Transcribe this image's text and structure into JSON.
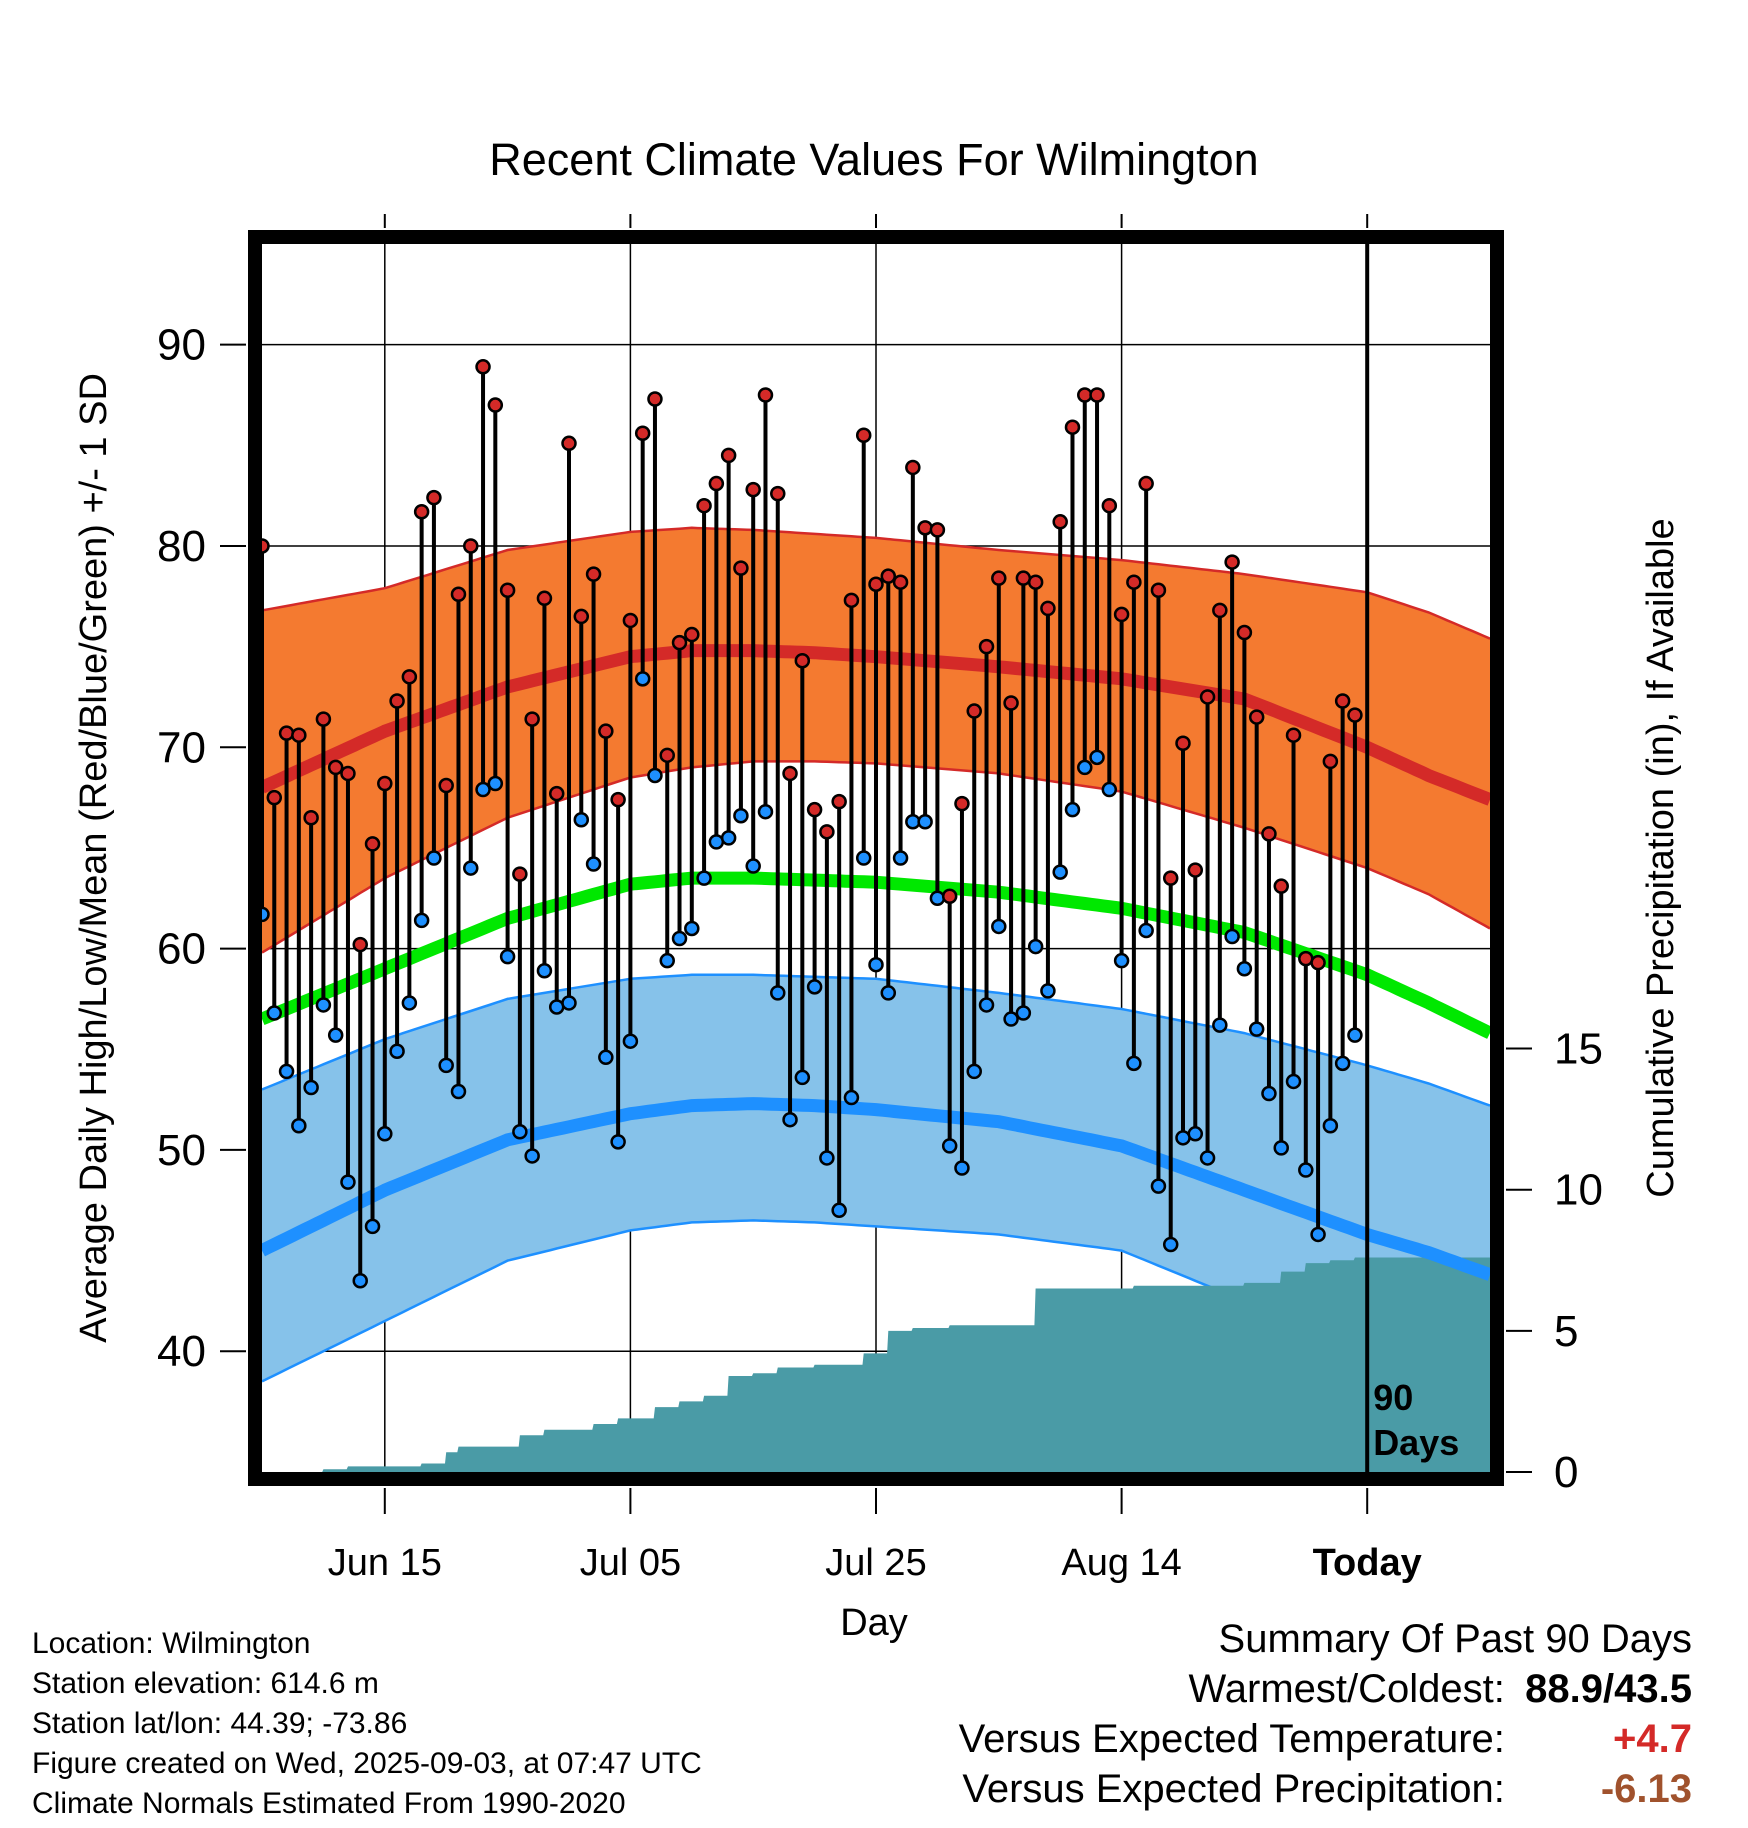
{
  "title": "Recent Climate Values For Wilmington",
  "chart_data": {
    "type": "line",
    "title": "Recent Climate Values For Wilmington",
    "xlabel": "Day",
    "ylabel": "Average Daily High/Low/Mean (Red/Blue/Green) +/- 1 SD",
    "y2label": "Cumulative Precipitation (in), If Available",
    "x_tick_labels": [
      "Jun 15",
      "Jul 05",
      "Jul 25",
      "Aug 14",
      "Today"
    ],
    "x_tick_days": [
      10,
      30,
      50,
      70,
      90
    ],
    "xlim": [
      0,
      100
    ],
    "ylim": [
      34,
      95
    ],
    "y_ticks": [
      40,
      50,
      60,
      70,
      80,
      90
    ],
    "y2lim": [
      0,
      43.5
    ],
    "y2_ticks": [
      0,
      5,
      10,
      15
    ],
    "grid": true,
    "today_marker_day": 90,
    "today_label": [
      "90",
      "Days"
    ],
    "colors": {
      "high_band": "#f47a30",
      "high_band_edge": "#d42a28",
      "high_mean": "#d42a28",
      "low_band": "#86c2ea",
      "low_band_edge": "#1e90ff",
      "low_mean": "#1e90ff",
      "mean_line": "#00e800",
      "precip": "#4a9ba6",
      "high_point": "#d42a28",
      "low_point": "#1e90ff"
    },
    "normal_high": {
      "x": [
        0,
        10,
        20,
        30,
        35,
        40,
        45,
        50,
        60,
        70,
        80,
        90,
        95,
        100
      ],
      "mean": [
        68.0,
        70.8,
        73.0,
        74.5,
        74.8,
        74.8,
        74.7,
        74.5,
        74.0,
        73.4,
        72.4,
        70.0,
        68.6,
        67.4
      ],
      "upper": [
        76.8,
        77.9,
        79.8,
        80.7,
        80.9,
        80.8,
        80.6,
        80.4,
        79.8,
        79.3,
        78.6,
        77.7,
        76.7,
        75.4
      ],
      "lower": [
        59.8,
        63.5,
        66.5,
        68.5,
        69.0,
        69.3,
        69.3,
        69.2,
        68.7,
        67.8,
        66.0,
        64.0,
        62.7,
        61.0
      ]
    },
    "normal_mean": {
      "x": [
        0,
        10,
        20,
        30,
        35,
        40,
        45,
        50,
        60,
        70,
        80,
        90,
        95,
        100
      ],
      "values": [
        56.5,
        59.0,
        61.5,
        63.2,
        63.5,
        63.5,
        63.4,
        63.3,
        62.8,
        62.0,
        60.8,
        58.7,
        57.3,
        55.8
      ]
    },
    "normal_low": {
      "x": [
        0,
        10,
        20,
        30,
        35,
        40,
        45,
        50,
        60,
        70,
        80,
        90,
        95,
        100
      ],
      "mean": [
        45.0,
        48.0,
        50.5,
        51.8,
        52.2,
        52.3,
        52.2,
        52.0,
        51.4,
        50.2,
        48.0,
        45.8,
        44.9,
        43.8
      ],
      "upper": [
        53.0,
        55.5,
        57.5,
        58.5,
        58.7,
        58.7,
        58.6,
        58.5,
        57.8,
        57.0,
        55.8,
        54.2,
        53.3,
        52.2
      ],
      "lower": [
        38.5,
        41.5,
        44.5,
        46.0,
        46.4,
        46.5,
        46.4,
        46.2,
        45.8,
        45.0,
        42.5,
        38.5,
        36.0,
        34.0
      ]
    },
    "daily_high": [
      80.0,
      67.5,
      70.7,
      70.6,
      66.5,
      71.4,
      69.0,
      68.7,
      60.2,
      65.2,
      68.2,
      72.3,
      73.5,
      81.7,
      82.4,
      68.1,
      77.6,
      80.0,
      88.9,
      87.0,
      77.8,
      63.7,
      71.4,
      77.4,
      67.7,
      85.1,
      76.5,
      78.6,
      70.8,
      67.4,
      76.3,
      85.6,
      87.3,
      69.6,
      75.2,
      75.6,
      82.0,
      83.1,
      84.5,
      78.9,
      82.8,
      87.5,
      82.6,
      68.7,
      74.3,
      66.9,
      65.8,
      67.3,
      77.3,
      85.5,
      78.1,
      78.5,
      78.2,
      83.9,
      80.9,
      80.8,
      62.6,
      67.2,
      71.8,
      75.0,
      78.4,
      72.2,
      78.4,
      78.2,
      76.9,
      81.2,
      85.9,
      87.5,
      87.5,
      82.0,
      76.6,
      78.2,
      83.1,
      77.8,
      63.5,
      70.2,
      63.9,
      72.5,
      76.8,
      79.2,
      75.7,
      71.5,
      65.7,
      63.1,
      70.6,
      59.5,
      59.3,
      69.3,
      72.3,
      71.6
    ],
    "daily_low": [
      61.7,
      56.8,
      53.9,
      51.2,
      53.1,
      57.2,
      55.7,
      48.4,
      43.5,
      46.2,
      50.8,
      54.9,
      57.3,
      61.4,
      64.5,
      54.2,
      52.9,
      64.0,
      67.9,
      68.2,
      59.6,
      50.9,
      49.7,
      58.9,
      57.1,
      57.3,
      66.4,
      64.2,
      54.6,
      50.4,
      55.4,
      73.4,
      68.6,
      59.4,
      60.5,
      61.0,
      63.5,
      65.3,
      65.5,
      66.6,
      64.1,
      66.8,
      57.8,
      51.5,
      53.6,
      58.1,
      49.6,
      47.0,
      52.6,
      64.5,
      59.2,
      57.8,
      64.5,
      66.3,
      66.3,
      62.5,
      50.2,
      49.1,
      53.9,
      57.2,
      61.1,
      56.5,
      56.8,
      60.1,
      57.9,
      63.8,
      66.9,
      69.0,
      69.5,
      67.9,
      59.4,
      54.3,
      60.9,
      48.2,
      45.3,
      50.6,
      50.8,
      49.6,
      56.2,
      60.6,
      59.0,
      56.0,
      52.8,
      50.1,
      53.4,
      49.0,
      45.8,
      51.2,
      54.3,
      55.7
    ],
    "precip": {
      "days": [
        0,
        4.9,
        5,
        6.9,
        7,
        12.9,
        13,
        14.9,
        15,
        15.9,
        16,
        20.9,
        21,
        22.9,
        23,
        26.9,
        27,
        28.9,
        29,
        31.9,
        32,
        33.9,
        34,
        35.9,
        36,
        37.9,
        38,
        39.9,
        40,
        41.9,
        42,
        44.9,
        45,
        48.9,
        49,
        50.9,
        51,
        52.9,
        53,
        55.9,
        56,
        62.9,
        63,
        64.9,
        65,
        70.9,
        71,
        79.9,
        80,
        82.9,
        83,
        84.9,
        85,
        86.9,
        87,
        88.9,
        89,
        100
      ],
      "values": [
        0,
        0,
        0.1,
        0.1,
        0.2,
        0.2,
        0.3,
        0.3,
        0.7,
        0.7,
        0.9,
        0.9,
        1.3,
        1.3,
        1.5,
        1.5,
        1.7,
        1.7,
        1.9,
        1.9,
        2.3,
        2.3,
        2.5,
        2.5,
        2.7,
        2.7,
        3.4,
        3.4,
        3.5,
        3.5,
        3.7,
        3.7,
        3.8,
        3.8,
        4.2,
        4.2,
        5.0,
        5.0,
        5.1,
        5.1,
        5.2,
        5.2,
        6.5,
        6.5,
        6.5,
        6.5,
        6.6,
        6.6,
        6.7,
        6.7,
        7.1,
        7.1,
        7.4,
        7.4,
        7.5,
        7.5,
        7.6,
        7.6
      ]
    }
  },
  "info": {
    "location": "Location: Wilmington",
    "elevation": "Station elevation: 614.6 m",
    "latlon": "Station lat/lon: 44.39; -73.86",
    "created": "Figure created on Wed, 2025-09-03, at 07:47 UTC",
    "normals": "Climate Normals Estimated From 1990-2020"
  },
  "summary": {
    "heading": "Summary Of Past 90 Days",
    "warmest_coldest_label": "Warmest/Coldest:",
    "warmest_coldest_value": "88.9/43.5",
    "temp_label": "Versus Expected Temperature:",
    "temp_value": "+4.7",
    "temp_color": "#d42a28",
    "precip_label": "Versus Expected Precipitation:",
    "precip_value": "-6.13",
    "precip_color": "#a0522d"
  }
}
